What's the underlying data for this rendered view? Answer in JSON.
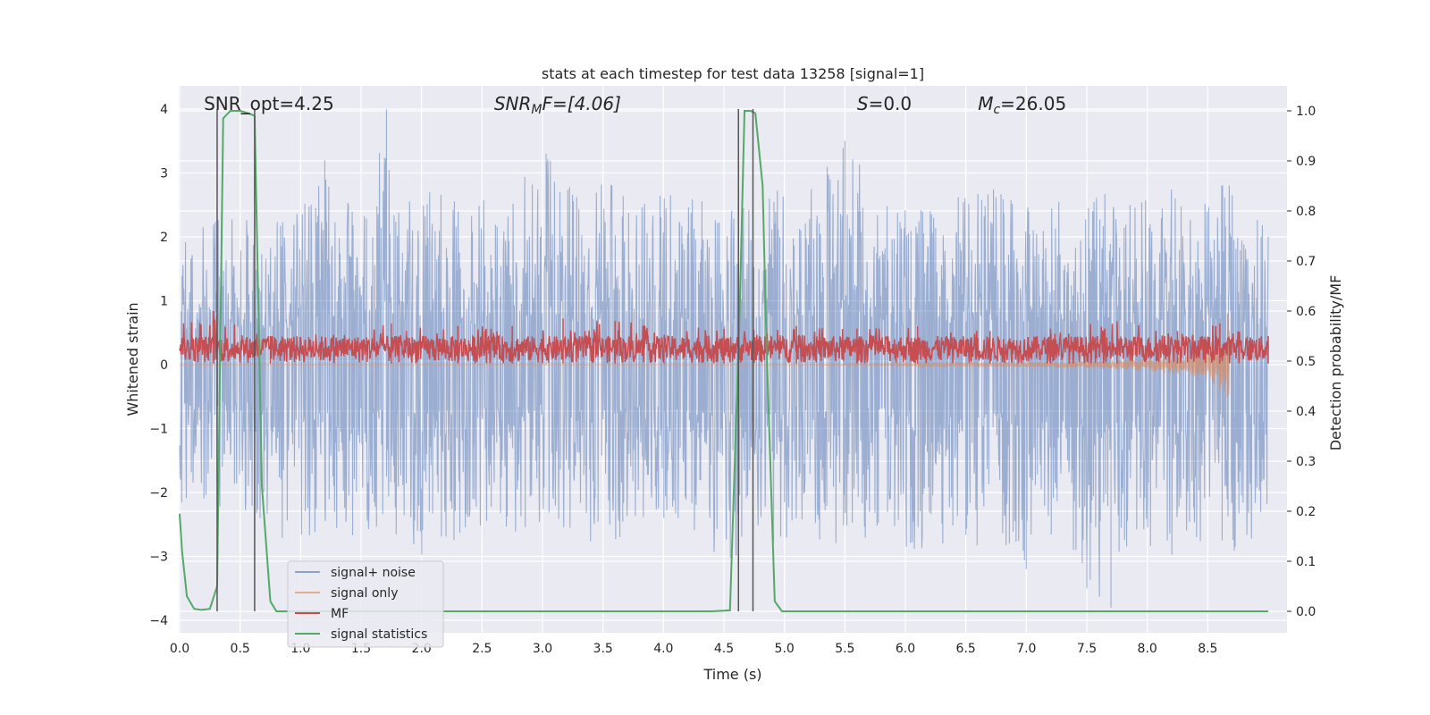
{
  "chart_data": {
    "type": "line",
    "title": "stats at each timestep for test data 13258 [signal=1]",
    "xlabel": "Time (s)",
    "ylabel": "Whitened strain",
    "ylabel_right": "Detection probability/MF",
    "xlim": [
      0,
      9.0
    ],
    "ylim": [
      -4.3,
      4.4
    ],
    "ylim_right": [
      -0.045,
      1.045
    ],
    "xticks": [
      "0.0",
      "0.5",
      "1.0",
      "1.5",
      "2.0",
      "2.5",
      "3.0",
      "3.5",
      "4.0",
      "4.5",
      "5.0",
      "5.5",
      "6.0",
      "6.5",
      "7.0",
      "7.5",
      "8.0",
      "8.5"
    ],
    "yticks_left": [
      "4",
      "3",
      "2",
      "1",
      "0",
      "−1",
      "−2",
      "−3",
      "−4"
    ],
    "yticks_right": [
      "1.0",
      "0.9",
      "0.8",
      "0.7",
      "0.6",
      "0.5",
      "0.4",
      "0.3",
      "0.2",
      "0.1",
      "0.0"
    ],
    "grid": true,
    "legend_placement": "lower-left",
    "annotations": {
      "snr_opt": {
        "label": "SNR_opt=4.25",
        "x": 0.2
      },
      "snr_mf": {
        "main": "SNR",
        "sub": "M",
        "rest": "F=[4.06]",
        "x": 2.6
      },
      "s": {
        "main": "S",
        "rest": "=0.0",
        "x": 5.6
      },
      "mc": {
        "main": "M",
        "sub": "c",
        "rest": "=26.05",
        "x": 6.6
      }
    },
    "series": [
      {
        "name": "signal+ noise",
        "color": "#4c72b0",
        "kind": "noise",
        "positive_envelope": {
          "x": [
            0.0,
            0.3,
            0.6,
            0.9,
            1.2,
            1.5,
            1.71,
            1.8,
            2.1,
            2.4,
            2.7,
            3.03,
            3.3,
            3.6,
            3.9,
            4.2,
            4.5,
            4.8,
            5.1,
            5.5,
            5.8,
            6.1,
            6.4,
            6.7,
            7.0,
            7.3,
            7.6,
            7.9,
            8.2,
            8.5,
            8.68,
            9.0
          ],
          "y": [
            2.0,
            2.5,
            2.3,
            2.3,
            3.2,
            2.4,
            4.0,
            2.5,
            3.0,
            2.5,
            2.7,
            3.3,
            2.6,
            3.0,
            2.8,
            2.7,
            2.4,
            3.0,
            2.5,
            3.5,
            2.7,
            2.4,
            2.6,
            2.8,
            2.6,
            2.7,
            2.7,
            2.5,
            2.9,
            2.7,
            3.0,
            2.1
          ]
        },
        "negative_envelope": {
          "x": [
            0.0,
            0.3,
            0.6,
            0.9,
            1.2,
            1.5,
            1.8,
            2.1,
            2.4,
            2.7,
            3.0,
            3.3,
            3.6,
            3.9,
            4.2,
            4.5,
            4.8,
            5.1,
            5.5,
            5.8,
            6.1,
            6.4,
            6.7,
            7.0,
            7.3,
            7.5,
            7.7,
            7.9,
            8.2,
            8.5,
            8.8,
            9.0
          ],
          "y": [
            -2.3,
            -2.2,
            -2.4,
            -2.8,
            -3.0,
            -2.6,
            -3.0,
            -3.0,
            -2.6,
            -2.7,
            -2.5,
            -2.8,
            -2.8,
            -2.5,
            -2.9,
            -3.0,
            -3.1,
            -2.6,
            -2.9,
            -2.6,
            -3.0,
            -2.8,
            -3.0,
            -3.2,
            -2.8,
            -3.5,
            -3.8,
            -2.8,
            -3.0,
            -2.7,
            -3.1,
            -2.4
          ]
        }
      },
      {
        "name": "signal only",
        "color": "#dd8452",
        "kind": "chirp",
        "x": [
          0.0,
          4.8,
          5.5,
          6.0,
          6.5,
          7.0,
          7.5,
          8.0,
          8.3,
          8.5,
          8.6,
          8.65,
          8.68
        ],
        "y": [
          0.0,
          0.0,
          0.01,
          0.02,
          0.03,
          0.04,
          0.06,
          0.1,
          0.18,
          0.32,
          0.5,
          0.75,
          0.9
        ]
      },
      {
        "name": "MF",
        "color": "#c44e52",
        "kind": "band",
        "x": [
          0.0,
          9.0
        ],
        "y_low": 0.495,
        "y_high": 0.55,
        "peaks": {
          "x": [
            0.28,
            0.75,
            1.75,
            2.3,
            2.75,
            3.17,
            3.6,
            4.5,
            5.1,
            5.6,
            6.1,
            6.7,
            7.2,
            7.75,
            8.25,
            8.6,
            9.0
          ],
          "y": [
            0.6,
            0.55,
            0.575,
            0.57,
            0.57,
            0.585,
            0.58,
            0.565,
            0.57,
            0.565,
            0.57,
            0.56,
            0.565,
            0.58,
            0.56,
            0.575,
            0.55
          ]
        }
      },
      {
        "name": "signal statistics",
        "color": "#55a868",
        "kind": "line",
        "x": [
          0.0,
          0.02,
          0.06,
          0.12,
          0.18,
          0.25,
          0.31,
          0.36,
          0.42,
          0.5,
          0.57,
          0.62,
          0.68,
          0.75,
          0.8,
          0.9,
          4.4,
          4.55,
          4.63,
          4.67,
          4.72,
          4.76,
          4.82,
          4.85,
          4.92,
          4.98,
          9.0
        ],
        "y": [
          0.195,
          0.12,
          0.03,
          0.005,
          0.003,
          0.005,
          0.05,
          0.985,
          1.0,
          1.0,
          0.995,
          0.99,
          0.25,
          0.02,
          0.0,
          0.0,
          0.0,
          0.002,
          0.6,
          1.0,
          1.0,
          0.995,
          0.85,
          0.55,
          0.02,
          0.0,
          0.0
        ]
      }
    ],
    "vertical_lines": {
      "color": "#555555",
      "x": [
        0.31,
        0.62,
        4.62,
        4.74
      ]
    }
  }
}
